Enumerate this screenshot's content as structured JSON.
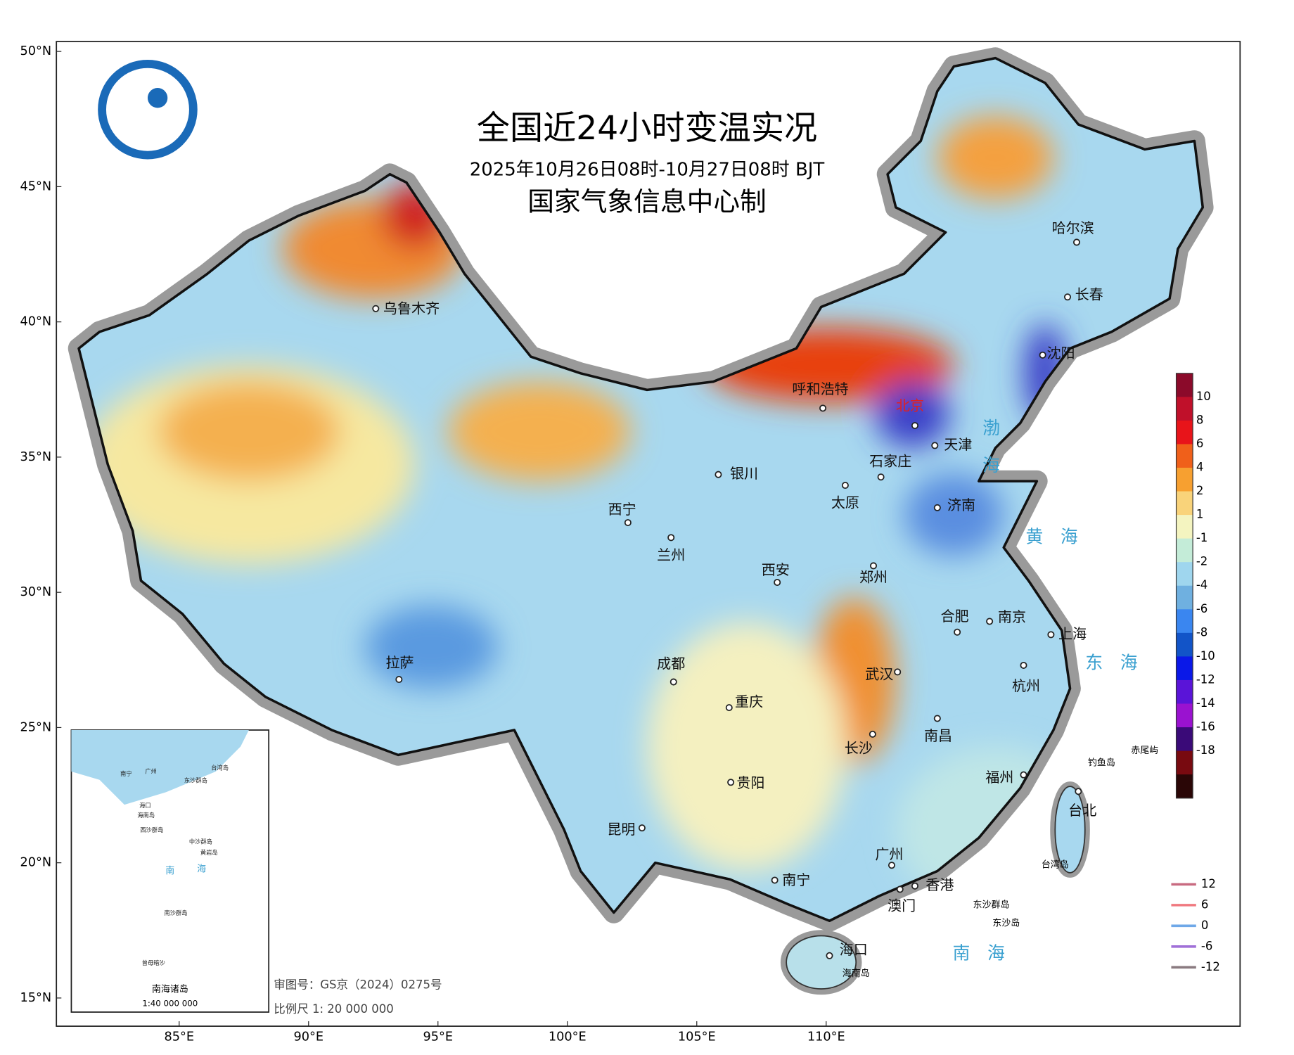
{
  "header": {
    "title": "全国近24小时变温实况",
    "subtitle": "2025年10月26日08时-10月27日08时 BJT",
    "producer": "国家气象信息中心制"
  },
  "lat_ticks": [
    {
      "value": 50,
      "label": "50°N"
    },
    {
      "value": 45,
      "label": "45°N"
    },
    {
      "value": 40,
      "label": "40°N"
    },
    {
      "value": 35,
      "label": "35°N"
    },
    {
      "value": 30,
      "label": "30°N"
    },
    {
      "value": 25,
      "label": "25°N"
    },
    {
      "value": 20,
      "label": "20°N"
    },
    {
      "value": 15,
      "label": "15°N"
    }
  ],
  "lon_ticks": [
    {
      "value": 85,
      "label": "85°E"
    },
    {
      "value": 90,
      "label": "90°E"
    },
    {
      "value": 95,
      "label": "95°E"
    },
    {
      "value": 100,
      "label": "100°E"
    },
    {
      "value": 105,
      "label": "105°E"
    },
    {
      "value": 110,
      "label": "110°E"
    }
  ],
  "cities": [
    "乌鲁木齐",
    "呼和浩特",
    "北京",
    "天津",
    "石家庄",
    "太原",
    "济南",
    "沈阳",
    "长春",
    "哈尔滨",
    "银川",
    "西宁",
    "兰州",
    "西安",
    "郑州",
    "合肥",
    "南京",
    "上海",
    "杭州",
    "武汉",
    "南昌",
    "长沙",
    "福州",
    "台北",
    "成都",
    "重庆",
    "贵阳",
    "昆明",
    "南宁",
    "广州",
    "香港",
    "澳门",
    "海口",
    "拉萨"
  ],
  "seas": [
    "渤",
    "海",
    "黄　海",
    "东　海",
    "南　海"
  ],
  "islands": [
    "赤尾屿",
    "钓鱼岛",
    "台湾岛",
    "东沙群岛",
    "东沙岛",
    "海南岛"
  ],
  "colorbar": {
    "levels": [
      10,
      8,
      6,
      4,
      2,
      1,
      -1,
      -2,
      -4,
      -6,
      -8,
      -10,
      -12,
      -14,
      -16,
      -18
    ],
    "colors": [
      "#8b0a2a",
      "#c0102a",
      "#e8141a",
      "#f0601a",
      "#f7a030",
      "#f9d37a",
      "#f4f4c0",
      "#c4ecd8",
      "#9fd6ee",
      "#6fb0e0",
      "#3a86f0",
      "#1254c8",
      "#0a18e8",
      "#5a14d8",
      "#9a12d0",
      "#3a0a78",
      "#780a10",
      "#2a0606"
    ]
  },
  "contour_legend": {
    "levels": [
      12,
      6,
      0,
      -6,
      -12
    ],
    "colors": [
      "#c86a80",
      "#f07a80",
      "#6fa8e8",
      "#a070d8",
      "#8a7a80"
    ]
  },
  "inset": {
    "labels": [
      "南宁",
      "广州",
      "台湾岛",
      "东沙群岛",
      "海口",
      "海南岛",
      "西沙群岛",
      "中沙群岛",
      "黄岩岛",
      "南",
      "海",
      "南沙群岛",
      "曾母暗沙"
    ],
    "title": "南海诸岛",
    "scale": "1:40 000 000"
  },
  "footer": {
    "review_no": "审图号：GS京（2024）0275号",
    "scale": "比例尺  1:  20 000 000"
  }
}
